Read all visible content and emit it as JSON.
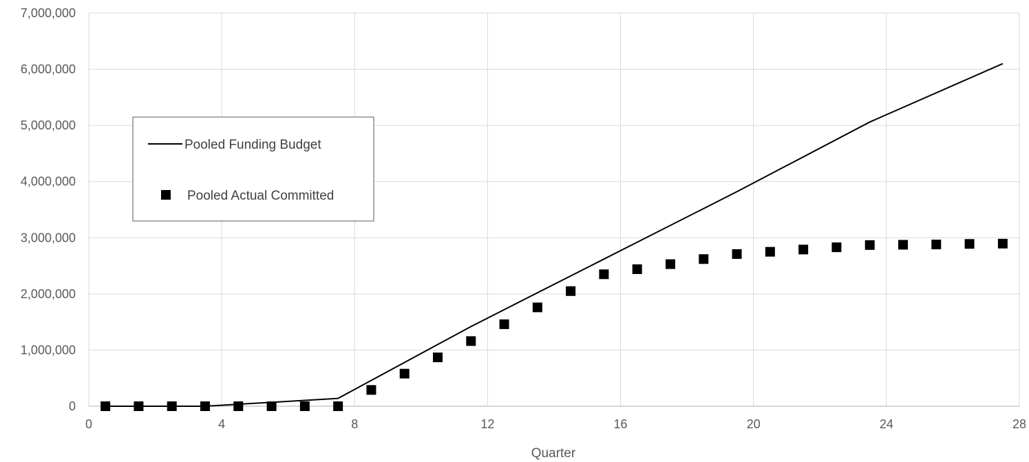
{
  "chart_data": {
    "type": "scatter",
    "title": "",
    "xlabel": "Quarter",
    "ylabel": "",
    "xlim": [
      0,
      28
    ],
    "ylim": [
      0,
      7000000
    ],
    "x_ticks": [
      0,
      4,
      8,
      12,
      16,
      20,
      24,
      28
    ],
    "y_ticks": [
      0,
      1000000,
      2000000,
      3000000,
      4000000,
      5000000,
      6000000,
      7000000
    ],
    "x_tick_labels": [
      "0",
      "4",
      "8",
      "12",
      "16",
      "20",
      "24",
      "28"
    ],
    "y_tick_labels": [
      "0",
      "1,000,000",
      "2,000,000",
      "3,000,000",
      "4,000,000",
      "5,000,000",
      "6,000,000",
      "7,000,000"
    ],
    "grid": true,
    "legend_position": "middle-left",
    "series": [
      {
        "name": "Pooled Funding Budget",
        "style": "line",
        "color": "#000000",
        "x": [
          0.5,
          3.5,
          7.5,
          11.5,
          15.5,
          19.5,
          23.5,
          27.5
        ],
        "y": [
          0,
          0,
          140000,
          1420000,
          2620000,
          3820000,
          5060000,
          6100000
        ]
      },
      {
        "name": "Pooled Actual Committed",
        "style": "markers",
        "marker": "square",
        "color": "#000000",
        "x": [
          0.5,
          1.5,
          2.5,
          3.5,
          4.5,
          5.5,
          6.5,
          7.5,
          8.5,
          9.5,
          10.5,
          11.5,
          12.5,
          13.5,
          14.5,
          15.5,
          16.5,
          17.5,
          18.5,
          19.5,
          20.5,
          21.5,
          22.5,
          23.5,
          24.5,
          25.5,
          26.5,
          27.5
        ],
        "y": [
          0,
          0,
          0,
          0,
          0,
          0,
          0,
          0,
          290000,
          580000,
          870000,
          1160000,
          1460000,
          1760000,
          2050000,
          2350000,
          2440000,
          2530000,
          2620000,
          2710000,
          2750000,
          2790000,
          2830000,
          2870000,
          2875000,
          2880000,
          2890000,
          2895000
        ]
      }
    ]
  }
}
